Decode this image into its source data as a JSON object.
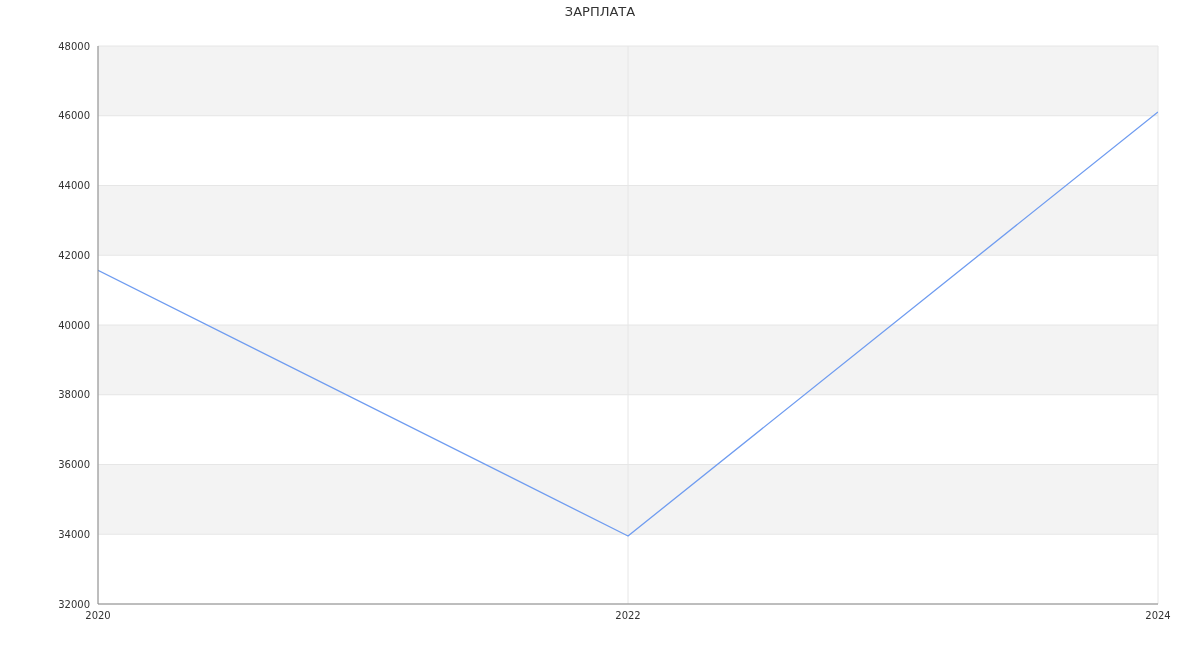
{
  "chart_data": {
    "type": "line",
    "title": "ЗАРПЛАТА",
    "x": [
      2020,
      2022,
      2024
    ],
    "series": [
      {
        "color": "#6f9cf0",
        "values": [
          41570,
          33950,
          46110
        ]
      }
    ],
    "xlim": [
      2020,
      2024
    ],
    "xticks": [
      2020,
      2022,
      2024
    ],
    "ylim": [
      32000,
      48000
    ],
    "yticks": [
      32000,
      34000,
      36000,
      38000,
      40000,
      42000,
      44000,
      46000,
      48000
    ],
    "grid": true,
    "marker": "none",
    "line_style": "solid"
  }
}
